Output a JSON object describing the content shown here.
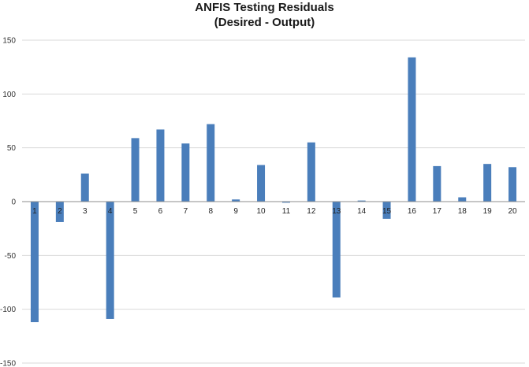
{
  "chart_data": {
    "type": "bar",
    "title": "ANFIS Testing Residuals",
    "subtitle": "(Desired - Output)",
    "xlabel": "",
    "ylabel": "",
    "categories": [
      "1",
      "2",
      "3",
      "4",
      "5",
      "6",
      "7",
      "8",
      "9",
      "10",
      "11",
      "12",
      "13",
      "14",
      "15",
      "16",
      "17",
      "18",
      "19",
      "20"
    ],
    "values": [
      -112,
      -19,
      26,
      -109,
      59,
      67,
      54,
      72,
      2,
      34,
      -1,
      55,
      -89,
      1,
      -16,
      134,
      33,
      4,
      35,
      32
    ],
    "ylim": [
      -150,
      150
    ],
    "yticks": [
      150,
      100,
      50,
      0,
      -50,
      -100,
      -150
    ],
    "grid": true,
    "legend": "none",
    "bar_color": "#4a7ebb",
    "grid_color": "#d9d9d9"
  }
}
